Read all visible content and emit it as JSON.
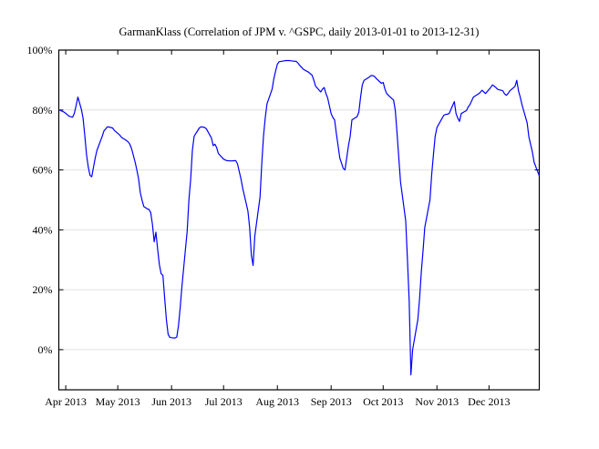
{
  "window": {
    "background": "#ffffff"
  },
  "chart_data": {
    "type": "line",
    "title": "GarmanKlass (Correlation of JPM v. ^GSPC, daily 2013-01-01 to 2013-12-31)",
    "xlabel": "",
    "ylabel": "",
    "legend": "none",
    "grid": "horizontal-only",
    "line_color": "#0000ff",
    "grid_color": "#e0e0e0",
    "axis_color": "#000000",
    "x_domain": [
      "2013-03-28",
      "2013-12-30"
    ],
    "ylim": [
      -13.4,
      100
    ],
    "y_ticks": [
      {
        "value": 0,
        "label": "0%"
      },
      {
        "value": 20,
        "label": "20%"
      },
      {
        "value": 40,
        "label": "40%"
      },
      {
        "value": 60,
        "label": "60%"
      },
      {
        "value": 80,
        "label": "80%"
      },
      {
        "value": 100,
        "label": "100%"
      }
    ],
    "x_ticks": [
      {
        "date": "2013-04-01",
        "label": "Apr 2013"
      },
      {
        "date": "2013-05-01",
        "label": "May 2013"
      },
      {
        "date": "2013-06-01",
        "label": "Jun 2013"
      },
      {
        "date": "2013-07-01",
        "label": "Jul 2013"
      },
      {
        "date": "2013-08-01",
        "label": "Aug 2013"
      },
      {
        "date": "2013-09-01",
        "label": "Sep 2013"
      },
      {
        "date": "2013-10-01",
        "label": "Oct 2013"
      },
      {
        "date": "2013-11-01",
        "label": "Nov 2013"
      },
      {
        "date": "2013-12-01",
        "label": "Dec 2013"
      }
    ],
    "points": [
      [
        "2013-03-28",
        80.1
      ],
      [
        "2013-03-31",
        79.3
      ],
      [
        "2013-04-01",
        78.9
      ],
      [
        "2013-04-03",
        77.9
      ],
      [
        "2013-04-05",
        77.6
      ],
      [
        "2013-04-06",
        79.0
      ],
      [
        "2013-04-07",
        81.5
      ],
      [
        "2013-04-08",
        84.3
      ],
      [
        "2013-04-10",
        80.3
      ],
      [
        "2013-04-11",
        77.3
      ],
      [
        "2013-04-12",
        71.5
      ],
      [
        "2013-04-13",
        65.1
      ],
      [
        "2013-04-14",
        61.0
      ],
      [
        "2013-04-15",
        58.2
      ],
      [
        "2013-04-16",
        57.7
      ],
      [
        "2013-04-17",
        61.0
      ],
      [
        "2013-04-18",
        64.1
      ],
      [
        "2013-04-19",
        66.6
      ],
      [
        "2013-04-20",
        68.1
      ],
      [
        "2013-04-21",
        69.7
      ],
      [
        "2013-04-22",
        71.2
      ],
      [
        "2013-04-23",
        73.0
      ],
      [
        "2013-04-25",
        74.4
      ],
      [
        "2013-04-26",
        74.3
      ],
      [
        "2013-04-28",
        74.0
      ],
      [
        "2013-04-29",
        73.2
      ],
      [
        "2013-05-01",
        72.2
      ],
      [
        "2013-05-02",
        71.7
      ],
      [
        "2013-05-03",
        71.0
      ],
      [
        "2013-05-04",
        70.5
      ],
      [
        "2013-05-05",
        70.2
      ],
      [
        "2013-05-07",
        69.4
      ],
      [
        "2013-05-08",
        68.5
      ],
      [
        "2013-05-09",
        67.0
      ],
      [
        "2013-05-11",
        62.6
      ],
      [
        "2013-05-12",
        60.0
      ],
      [
        "2013-05-13",
        57.0
      ],
      [
        "2013-05-14",
        52.4
      ],
      [
        "2013-05-15",
        49.9
      ],
      [
        "2013-05-16",
        47.8
      ],
      [
        "2013-05-18",
        47.0
      ],
      [
        "2013-05-19",
        46.8
      ],
      [
        "2013-05-20",
        45.8
      ],
      [
        "2013-05-21",
        41.8
      ],
      [
        "2013-05-22",
        36.0
      ],
      [
        "2013-05-23",
        39.2
      ],
      [
        "2013-05-24",
        33.5
      ],
      [
        "2013-05-25",
        28.4
      ],
      [
        "2013-05-26",
        25.4
      ],
      [
        "2013-05-27",
        24.8
      ],
      [
        "2013-05-28",
        17.2
      ],
      [
        "2013-05-29",
        10.0
      ],
      [
        "2013-05-30",
        5.1
      ],
      [
        "2013-05-31",
        4.1
      ],
      [
        "2013-06-01",
        4.0
      ],
      [
        "2013-06-03",
        3.9
      ],
      [
        "2013-06-04",
        4.2
      ],
      [
        "2013-06-05",
        8.1
      ],
      [
        "2013-06-06",
        14.2
      ],
      [
        "2013-06-07",
        21.3
      ],
      [
        "2013-06-08",
        27.4
      ],
      [
        "2013-06-09",
        33.5
      ],
      [
        "2013-06-10",
        39.5
      ],
      [
        "2013-06-11",
        50.0
      ],
      [
        "2013-06-12",
        56.7
      ],
      [
        "2013-06-13",
        66.5
      ],
      [
        "2013-06-14",
        71.2
      ],
      [
        "2013-06-17",
        74.0
      ],
      [
        "2013-06-18",
        74.4
      ],
      [
        "2013-06-20",
        74.2
      ],
      [
        "2013-06-21",
        73.8
      ],
      [
        "2013-06-24",
        70.7
      ],
      [
        "2013-06-25",
        68.1
      ],
      [
        "2013-06-26",
        68.6
      ],
      [
        "2013-06-27",
        67.5
      ],
      [
        "2013-06-28",
        65.5
      ],
      [
        "2013-07-01",
        63.6
      ],
      [
        "2013-07-02",
        63.3
      ],
      [
        "2013-07-03",
        63.1
      ],
      [
        "2013-07-05",
        63.0
      ],
      [
        "2013-07-08",
        63.1
      ],
      [
        "2013-07-09",
        62.0
      ],
      [
        "2013-07-10",
        59.5
      ],
      [
        "2013-07-11",
        57.0
      ],
      [
        "2013-07-12",
        53.9
      ],
      [
        "2013-07-15",
        46.3
      ],
      [
        "2013-07-16",
        40.8
      ],
      [
        "2013-07-17",
        31.6
      ],
      [
        "2013-07-18",
        28.1
      ],
      [
        "2013-07-19",
        38.0
      ],
      [
        "2013-07-22",
        50.9
      ],
      [
        "2013-07-23",
        62.0
      ],
      [
        "2013-07-24",
        71.2
      ],
      [
        "2013-07-25",
        77.3
      ],
      [
        "2013-07-26",
        82.0
      ],
      [
        "2013-07-29",
        87.0
      ],
      [
        "2013-07-30",
        90.5
      ],
      [
        "2013-07-31",
        93.0
      ],
      [
        "2013-08-01",
        95.3
      ],
      [
        "2013-08-02",
        96.1
      ],
      [
        "2013-08-05",
        96.4
      ],
      [
        "2013-08-06",
        96.5
      ],
      [
        "2013-08-07",
        96.5
      ],
      [
        "2013-08-08",
        96.5
      ],
      [
        "2013-08-09",
        96.4
      ],
      [
        "2013-08-12",
        96.2
      ],
      [
        "2013-08-13",
        95.6
      ],
      [
        "2013-08-14",
        94.8
      ],
      [
        "2013-08-15",
        94.2
      ],
      [
        "2013-08-16",
        93.6
      ],
      [
        "2013-08-19",
        92.6
      ],
      [
        "2013-08-20",
        92.1
      ],
      [
        "2013-08-21",
        91.6
      ],
      [
        "2013-08-22",
        90.0
      ],
      [
        "2013-08-23",
        88.0
      ],
      [
        "2013-08-26",
        86.0
      ],
      [
        "2013-08-27",
        87.0
      ],
      [
        "2013-08-28",
        87.5
      ],
      [
        "2013-08-29",
        85.5
      ],
      [
        "2013-08-30",
        84.0
      ],
      [
        "2013-09-01",
        78.8
      ],
      [
        "2013-09-02",
        77.5
      ],
      [
        "2013-09-03",
        76.7
      ],
      [
        "2013-09-04",
        72.2
      ],
      [
        "2013-09-05",
        68.1
      ],
      [
        "2013-09-06",
        64.0
      ],
      [
        "2013-09-08",
        60.5
      ],
      [
        "2013-09-09",
        60.0
      ],
      [
        "2013-09-10",
        64.0
      ],
      [
        "2013-09-11",
        68.1
      ],
      [
        "2013-09-12",
        71.2
      ],
      [
        "2013-09-13",
        76.7
      ],
      [
        "2013-09-16",
        77.8
      ],
      [
        "2013-09-17",
        79.3
      ],
      [
        "2013-09-18",
        84.3
      ],
      [
        "2013-09-19",
        88.4
      ],
      [
        "2013-09-20",
        89.9
      ],
      [
        "2013-09-23",
        91.0
      ],
      [
        "2013-09-24",
        91.5
      ],
      [
        "2013-09-25",
        91.5
      ],
      [
        "2013-09-26",
        91.2
      ],
      [
        "2013-09-27",
        90.5
      ],
      [
        "2013-09-30",
        88.9
      ],
      [
        "2013-10-01",
        89.2
      ],
      [
        "2013-10-02",
        87.0
      ],
      [
        "2013-10-03",
        85.5
      ],
      [
        "2013-10-04",
        84.9
      ],
      [
        "2013-10-07",
        83.3
      ],
      [
        "2013-10-08",
        79.8
      ],
      [
        "2013-10-09",
        72.2
      ],
      [
        "2013-10-10",
        64.1
      ],
      [
        "2013-10-11",
        56.0
      ],
      [
        "2013-10-14",
        43.0
      ],
      [
        "2013-10-15",
        30.0
      ],
      [
        "2013-10-16",
        16.4
      ],
      [
        "2013-10-17",
        -8.4
      ],
      [
        "2013-10-18",
        0.0
      ],
      [
        "2013-10-21",
        10.0
      ],
      [
        "2013-10-22",
        17.0
      ],
      [
        "2013-10-23",
        26.0
      ],
      [
        "2013-10-24",
        33.0
      ],
      [
        "2013-10-25",
        40.8
      ],
      [
        "2013-10-28",
        50.0
      ],
      [
        "2013-10-29",
        58.5
      ],
      [
        "2013-10-30",
        65.1
      ],
      [
        "2013-10-31",
        71.2
      ],
      [
        "2013-11-01",
        74.2
      ],
      [
        "2013-11-04",
        77.3
      ],
      [
        "2013-11-05",
        78.3
      ],
      [
        "2013-11-06",
        78.5
      ],
      [
        "2013-11-07",
        78.6
      ],
      [
        "2013-11-08",
        78.8
      ],
      [
        "2013-11-11",
        82.8
      ],
      [
        "2013-11-12",
        78.8
      ],
      [
        "2013-11-13",
        77.3
      ],
      [
        "2013-11-14",
        76.2
      ],
      [
        "2013-11-15",
        78.8
      ],
      [
        "2013-11-18",
        79.8
      ],
      [
        "2013-11-19",
        81.0
      ],
      [
        "2013-11-20",
        81.8
      ],
      [
        "2013-11-21",
        83.0
      ],
      [
        "2013-11-22",
        84.3
      ],
      [
        "2013-11-25",
        85.4
      ],
      [
        "2013-11-26",
        85.9
      ],
      [
        "2013-11-27",
        86.6
      ],
      [
        "2013-11-29",
        85.5
      ],
      [
        "2013-12-02",
        87.5
      ],
      [
        "2013-12-03",
        88.4
      ],
      [
        "2013-12-04",
        88.0
      ],
      [
        "2013-12-05",
        87.5
      ],
      [
        "2013-12-06",
        86.9
      ],
      [
        "2013-12-09",
        86.4
      ],
      [
        "2013-12-10",
        85.4
      ],
      [
        "2013-12-11",
        84.9
      ],
      [
        "2013-12-12",
        85.5
      ],
      [
        "2013-12-13",
        86.4
      ],
      [
        "2013-12-16",
        87.9
      ],
      [
        "2013-12-17",
        89.9
      ],
      [
        "2013-12-18",
        86.4
      ],
      [
        "2013-12-19",
        84.3
      ],
      [
        "2013-12-20",
        81.8
      ],
      [
        "2013-12-23",
        75.7
      ],
      [
        "2013-12-24",
        71.0
      ],
      [
        "2013-12-26",
        66.0
      ],
      [
        "2013-12-27",
        62.6
      ],
      [
        "2013-12-29",
        59.5
      ],
      [
        "2013-12-30",
        58.0
      ]
    ]
  }
}
